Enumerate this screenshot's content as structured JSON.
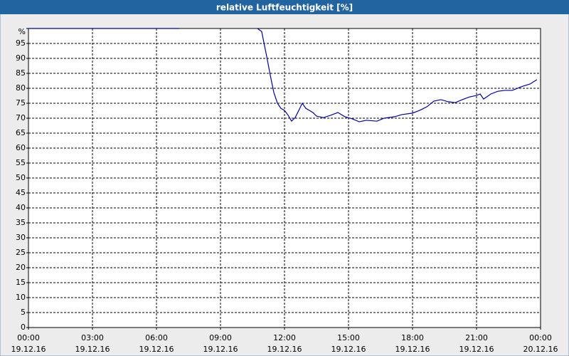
{
  "chart_data": {
    "type": "line",
    "title": "relative Luftfeuchtigkeit [%]",
    "x": [
      0,
      7.07,
      9,
      10.73,
      10.93,
      11.17,
      11.33,
      11.5,
      11.67,
      11.83,
      12,
      12.17,
      12.33,
      12.5,
      12.67,
      12.83,
      13,
      13.33,
      13.5,
      13.83,
      14.17,
      14.5,
      14.83,
      15.17,
      15.5,
      15.83,
      16.33,
      16.67,
      17.17,
      17.5,
      18,
      18.33,
      18.67,
      19,
      19.33,
      19.67,
      20,
      20.33,
      20.67,
      21,
      21.17,
      21.33,
      21.67,
      22,
      22.33,
      22.67,
      23.17,
      23.5,
      23.83
    ],
    "series": [
      {
        "color": "#0000a0",
        "values": [
          100,
          100,
          null,
          100,
          99,
          90.5,
          84.5,
          78.6,
          75,
          73.3,
          72.6,
          71,
          69,
          70.2,
          72.6,
          75,
          73.3,
          71.9,
          70.7,
          70.2,
          71,
          71.9,
          70.5,
          69.8,
          68.8,
          69.3,
          69,
          70,
          70.5,
          71.2,
          71.7,
          72.6,
          73.8,
          75.7,
          76.2,
          75.5,
          75.2,
          76.2,
          77.1,
          77.6,
          78.1,
          76.4,
          78.1,
          79,
          79.3,
          79.3,
          80.7,
          81.4,
          82.9
        ]
      }
    ],
    "xlim": [
      0,
      24
    ],
    "xticks": [
      {
        "value": 0,
        "label": "00:00",
        "date": "19.12.16"
      },
      {
        "value": 3,
        "label": "03:00",
        "date": "19.12.16"
      },
      {
        "value": 6,
        "label": "06:00",
        "date": "19.12.16"
      },
      {
        "value": 9,
        "label": "09:00",
        "date": "19.12.16"
      },
      {
        "value": 12,
        "label": "12:00",
        "date": "19.12.16"
      },
      {
        "value": 15,
        "label": "15:00",
        "date": "19.12.16"
      },
      {
        "value": 18,
        "label": "18:00",
        "date": "19.12.16"
      },
      {
        "value": 21,
        "label": "21:00",
        "date": "19.12.16"
      },
      {
        "value": 24,
        "label": "00:00",
        "date": "20.12.16"
      }
    ],
    "ylim": [
      0,
      100
    ],
    "yticks": [
      0,
      5,
      10,
      15,
      20,
      25,
      30,
      35,
      40,
      45,
      50,
      55,
      60,
      65,
      70,
      75,
      80,
      85,
      90,
      95,
      {
        "value": 100,
        "label": "%"
      }
    ],
    "grid": true
  }
}
